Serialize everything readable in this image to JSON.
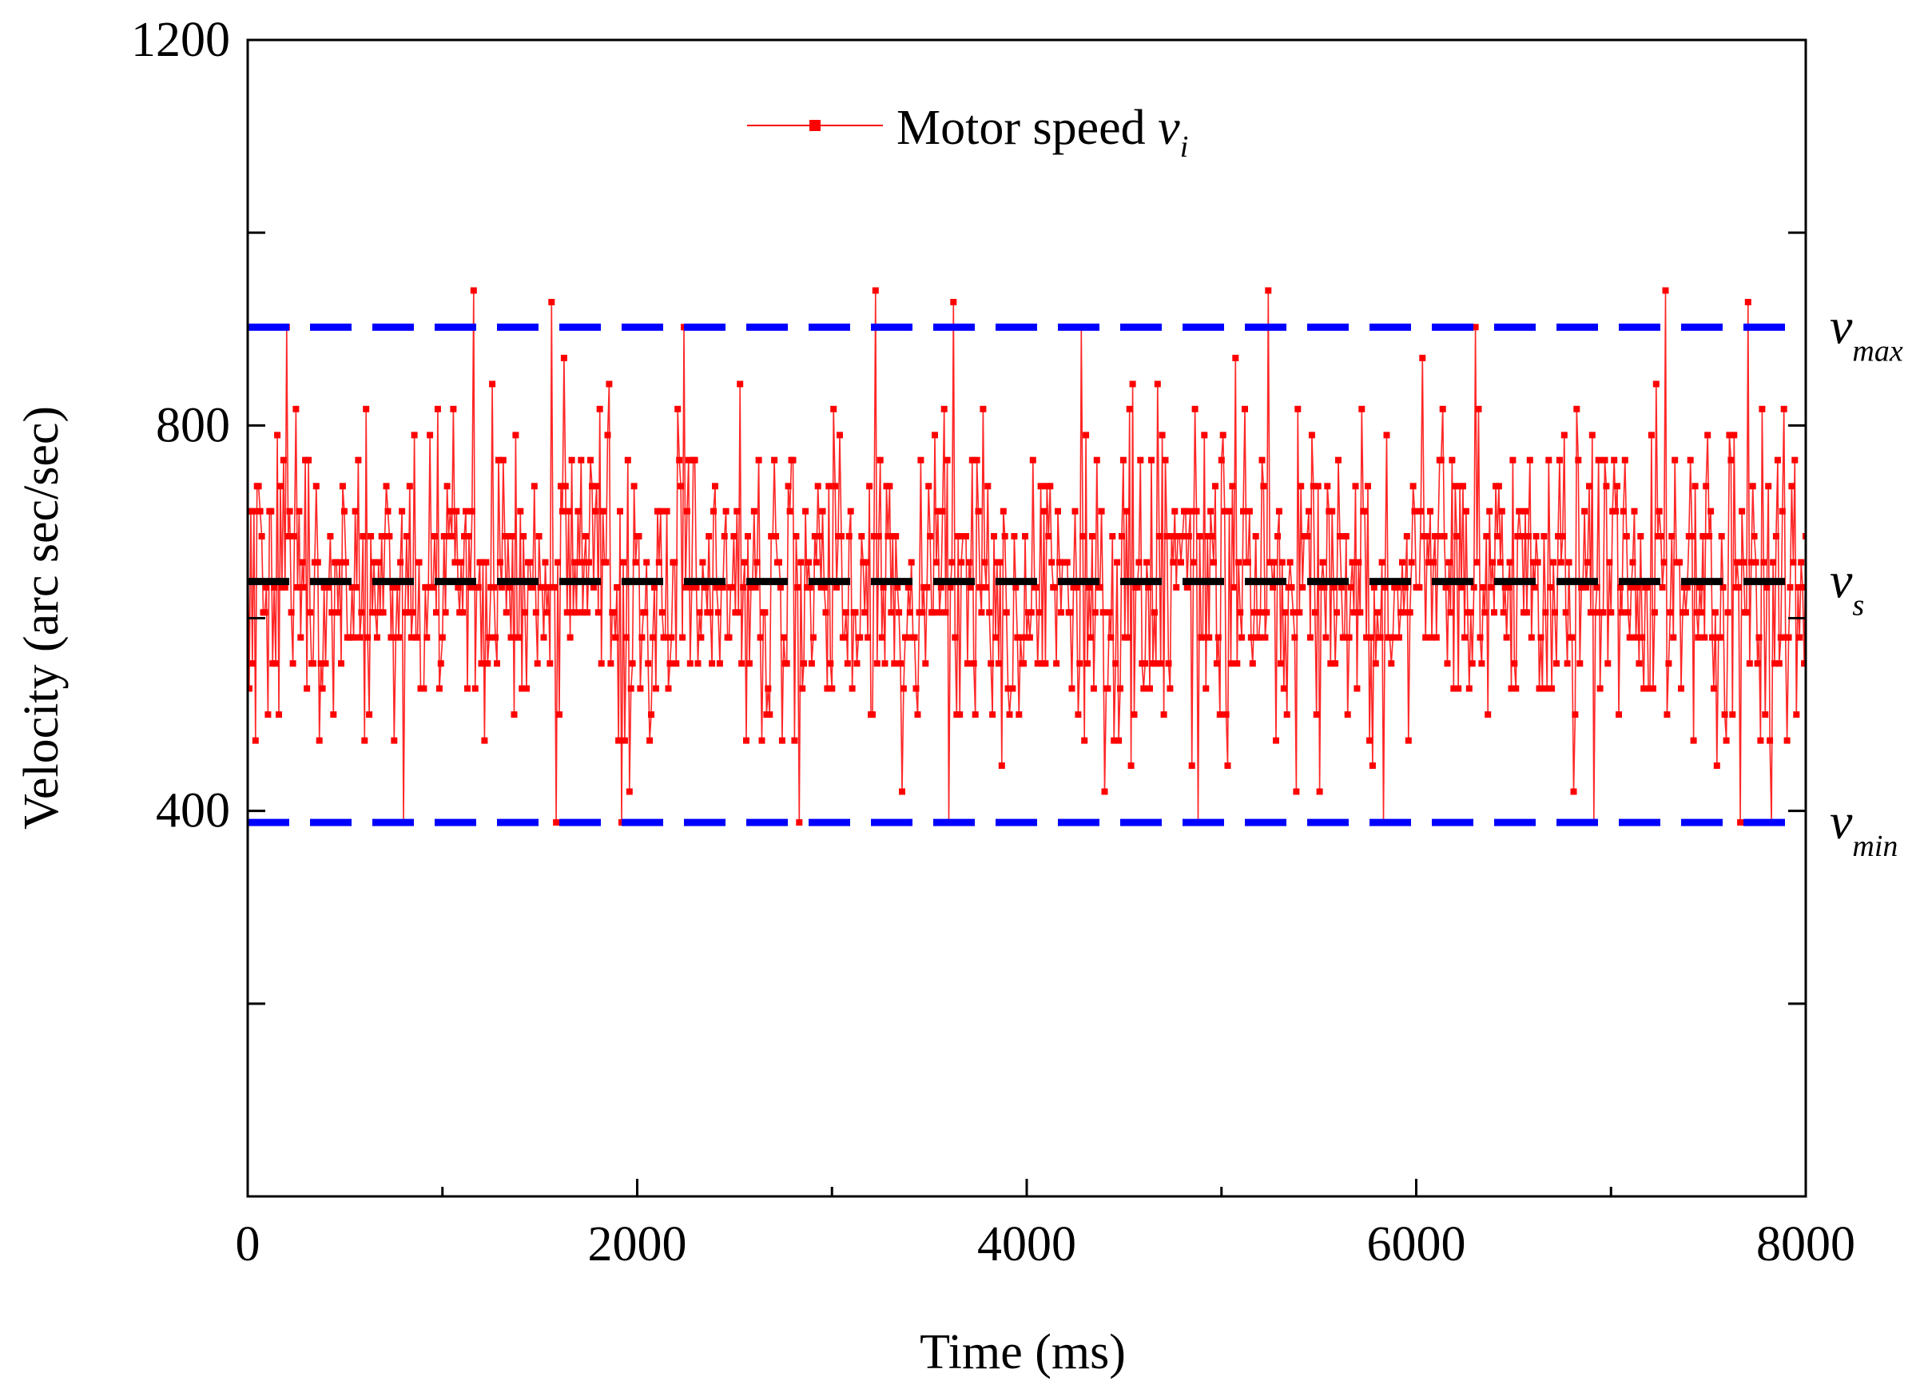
{
  "chart_data": {
    "type": "line",
    "title": "",
    "xlabel": "Time (ms)",
    "ylabel": "Velocity (arc sec/sec)",
    "xlim": [
      0,
      8000
    ],
    "ylim": [
      0,
      1200
    ],
    "x_ticks": [
      0,
      2000,
      4000,
      6000,
      8000
    ],
    "x_minor_ticks": [
      1000,
      3000,
      5000,
      7000
    ],
    "y_tick_labels": [
      400,
      800,
      1200
    ],
    "y_ticks_unlabeled": [
      200,
      600,
      1000
    ],
    "grid": false,
    "legend": {
      "position": "top-center",
      "entries": [
        {
          "label_main": "Motor speed ",
          "label_var": "v",
          "label_sub": "i",
          "color": "#ff0000",
          "marker": "square"
        }
      ]
    },
    "series": [
      {
        "name": "Motor speed v_i",
        "color": "#ff0000",
        "sampling_interval_ms": 8,
        "x_range": [
          0,
          8000
        ],
        "quantized_levels": [
          388,
          420,
          447,
          473,
          500,
          527,
          553,
          580,
          606,
          632,
          658,
          685,
          711,
          737,
          764,
          790,
          817,
          843,
          870,
          902,
          940
        ],
        "mean": 638,
        "std_dev": 85,
        "peak_max_points": [
          {
            "x": 200,
            "y": 902
          },
          {
            "x": 1160,
            "y": 940
          },
          {
            "x": 1560,
            "y": 928
          },
          {
            "x": 2240,
            "y": 902
          },
          {
            "x": 3220,
            "y": 940
          },
          {
            "x": 3620,
            "y": 928
          },
          {
            "x": 4280,
            "y": 902
          },
          {
            "x": 5240,
            "y": 940
          },
          {
            "x": 6300,
            "y": 902
          },
          {
            "x": 7280,
            "y": 940
          },
          {
            "x": 7700,
            "y": 928
          }
        ],
        "trough_min_points": [
          {
            "x": 800,
            "y": 388
          },
          {
            "x": 1580,
            "y": 388
          },
          {
            "x": 1920,
            "y": 388
          },
          {
            "x": 2830,
            "y": 388
          },
          {
            "x": 3600,
            "y": 388
          },
          {
            "x": 4880,
            "y": 388
          },
          {
            "x": 5830,
            "y": 388
          },
          {
            "x": 6910,
            "y": 388
          },
          {
            "x": 7660,
            "y": 388
          },
          {
            "x": 7820,
            "y": 388
          }
        ]
      }
    ],
    "reference_lines": [
      {
        "name": "v_max",
        "label_main": "v",
        "label_sub": "max",
        "y": 902,
        "color": "#0000ff",
        "style": "dashed"
      },
      {
        "name": "v_s",
        "label_main": "v",
        "label_sub": "s",
        "y": 638,
        "color": "#000000",
        "style": "dashed"
      },
      {
        "name": "v_min",
        "label_main": "v",
        "label_sub": "min",
        "y": 388,
        "color": "#0000ff",
        "style": "dashed"
      }
    ]
  }
}
